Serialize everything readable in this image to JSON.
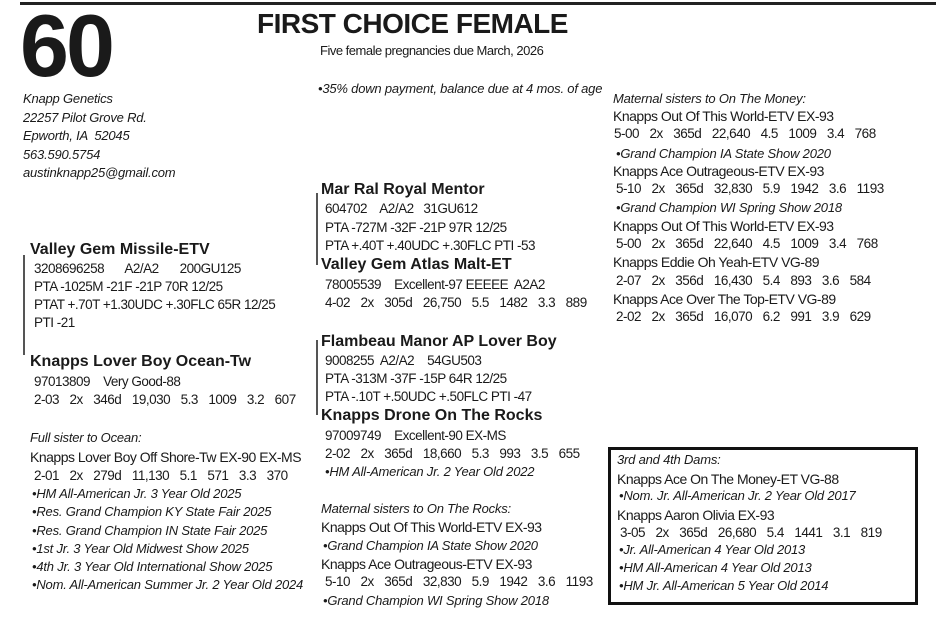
{
  "lot_number": "60",
  "title": "FIRST CHOICE FEMALE",
  "subtitle": "Five female pregnancies due March, 2026",
  "terms": "•35% down payment, balance due at 4 mos. of age",
  "consignor": {
    "name": "Knapp Genetics",
    "street": "22257 Pilot Grove Rd.",
    "city": "Epworth, IA  52045",
    "phone": "563.590.5754",
    "email": "austinknapp25@gmail.com"
  },
  "sire_side_left": {
    "sire": {
      "name": "Valley Gem Missile-ETV",
      "lines": [
        "3208696258    A2/A2    200GU125",
        "PTA -1025M -21F -21P 70R 12/25",
        "PTAT +.70T +1.30UDC +.30FLC 65R 12/25",
        "PTI -21"
      ]
    },
    "dam": {
      "name": "Knapps Lover Boy Ocean-Tw",
      "lines": [
        "97013809    Very Good-88",
        "2-03  2x  346d  19,030  5.3  1009  3.2  607"
      ]
    },
    "sister_header": "Full sister to Ocean:",
    "sister_name": "Knapps Lover Boy Off Shore-Tw EX-90 EX-MS",
    "sister_record": "2-01  2x  279d  11,130  5.1  571  3.3  370",
    "sister_awards": [
      "•HM All-American Jr. 3 Year Old 2025",
      "•Res. Grand Champion KY State Fair 2025",
      "•Res. Grand Champion IN State Fair 2025",
      "•1st Jr. 3 Year Old Midwest Show 2025",
      "•4th Jr. 3 Year Old International Show 2025",
      "•Nom. All-American Summer Jr. 2 Year Old 2024"
    ]
  },
  "middle": {
    "sire1": {
      "name": "Mar Ral Royal Mentor",
      "lines": [
        "604702    A2/A2   31GU612",
        "PTA -727M -32F -21P 97R 12/25",
        "PTA +.40T +.40UDC +.30FLC PTI -53"
      ]
    },
    "dam1": {
      "name": "Valley Gem Atlas Malt-ET",
      "lines": [
        "78005539    Excellent-97 EEEEE  A2A2",
        "4-02  2x  305d  26,750  5.5  1482  3.3  889"
      ]
    },
    "sire2": {
      "name": "Flambeau Manor AP Lover Boy",
      "lines": [
        "9008255  A2/A2    54GU503",
        "PTA -313M -37F -15P 64R 12/25",
        "PTA -.10T +.50UDC +.50FLC PTI -47"
      ]
    },
    "dam2": {
      "name": "Knapps Drone On The Rocks",
      "lines": [
        "97009749    Excellent-90 EX-MS",
        "2-02  2x  365d  18,660  5.3  993  3.5  655",
        "•HM All-American Jr. 2 Year Old 2022"
      ]
    },
    "sisters_header": "Maternal sisters to On The Rocks:",
    "sisters_lines": [
      "Knapps Out Of This World-ETV EX-93",
      "•Grand Champion IA State Show 2020",
      "Knapps Ace Outrageous-ETV EX-93",
      "5-10  2x  365d  32,830  5.9  1942  3.6  1193",
      "•Grand Champion WI Spring Show 2018"
    ]
  },
  "right": {
    "sisters_header": "Maternal sisters to On The Money:",
    "lines": [
      "Knapps Out Of This World-ETV EX-93",
      "5-00  2x  365d  22,640  4.5  1009  3.4  768",
      "•Grand Champion IA State Show 2020",
      "Knapps Ace Outrageous-ETV EX-93",
      "5-10  2x  365d  32,830  5.9  1942  3.6  1193",
      "•Grand Champion WI Spring Show 2018",
      "Knapps Out Of This World-ETV EX-93",
      "5-00  2x  365d  22,640  4.5  1009  3.4  768",
      "Knapps Eddie Oh Yeah-ETV VG-89",
      "2-07  2x  356d  16,430  5.4  893  3.6  584",
      "Knapps Ace Over The Top-ETV VG-89",
      "2-02  2x  365d  16,070  6.2  991  3.9  629"
    ],
    "box": {
      "header": "3rd and 4th Dams:",
      "lines": [
        "Knapps Ace On The Money-ET VG-88",
        "•Nom. Jr. All-American Jr. 2 Year Old 2017",
        "Knapps Aaron Olivia EX-93",
        "3-05  2x  365d  26,680  5.4  1441  3.1  819",
        "•Jr. All-American 4 Year Old 2013",
        "•HM All-American 4 Year Old 2013",
        "•HM Jr. All-American 5 Year Old 2014"
      ]
    }
  }
}
